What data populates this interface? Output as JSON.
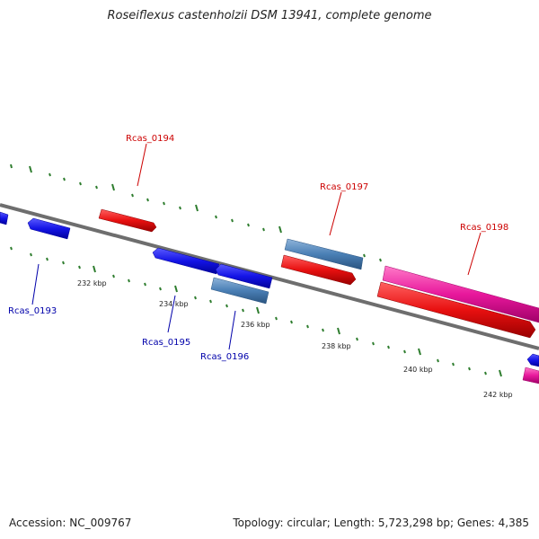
{
  "title": "Roseiflexus castenholzii DSM 13941, complete genome",
  "footer": {
    "accession": "Accession: NC_009767",
    "topology": "Topology: circular; Length: 5,723,298 bp; Genes: 4,385"
  },
  "ticks": {
    "kbp_232": "232 kbp",
    "kbp_234": "234 kbp",
    "kbp_236": "236 kbp",
    "kbp_238": "238 kbp",
    "kbp_240": "240 kbp",
    "kbp_242": "242 kbp"
  },
  "genes": {
    "rcas_0193": "Rcas_0193",
    "rcas_0194": "Rcas_0194",
    "rcas_0195": "Rcas_0195",
    "rcas_0196": "Rcas_0196",
    "rcas_0197": "Rcas_0197",
    "rcas_0198": "Rcas_0198"
  },
  "colors": {
    "backbone": "#808080",
    "tick": "#2e7d2e",
    "forward_gene": "#e01010",
    "reverse_gene": "#1010e0",
    "steel_gene": "#4a7fb5",
    "pink_gene": "#e0179a",
    "forward_label": "#cc0000",
    "reverse_label": "#0000aa"
  }
}
